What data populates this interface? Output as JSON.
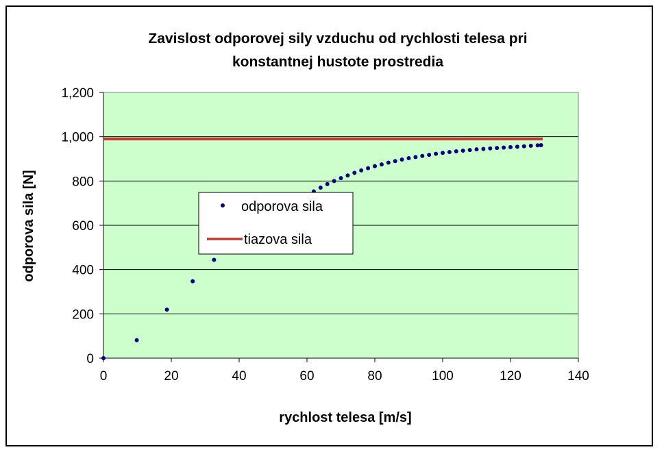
{
  "chart_data": {
    "type": "scatter",
    "title": "Zavislost odporovej sily vzduchu od rychlosti telesa pri konstantnej hustote prostredia",
    "title_lines": [
      "Zavislost odporovej sily vzduchu od rychlosti telesa pri",
      "konstantnej hustote prostredia"
    ],
    "xlabel": "rychlost telesa [m/s]",
    "ylabel": "odporova sila [N]",
    "xlim": [
      0,
      140
    ],
    "ylim": [
      0,
      1200
    ],
    "x_ticks": [
      0,
      20,
      40,
      60,
      80,
      100,
      120,
      140
    ],
    "y_ticks": [
      0,
      200,
      400,
      600,
      800,
      1000,
      1200
    ],
    "x_tick_labels": [
      "0",
      "20",
      "40",
      "60",
      "80",
      "100",
      "120",
      "140"
    ],
    "y_tick_labels": [
      "0",
      "200",
      "400",
      "600",
      "800",
      "1,000",
      "1,200"
    ],
    "grid": "horizontal",
    "plot_background": "#ccffcc",
    "legend_position": "center-left",
    "series": [
      {
        "name": "odporova sila",
        "type": "scatter",
        "color": "#000080",
        "x": [
          0,
          9.8,
          18.7,
          26.3,
          32.6,
          62.0,
          64.0,
          66.0,
          68.0,
          70.0,
          72.0,
          74.0,
          76.0,
          78.0,
          80.0,
          82.0,
          84.0,
          86.0,
          88.0,
          90.0,
          92.0,
          94.0,
          96.0,
          98.0,
          100.0,
          102.0,
          104.0,
          106.0,
          108.0,
          110.0,
          112.0,
          114.0,
          116.0,
          118.0,
          120.0,
          122.0,
          124.0,
          126.0,
          128.0,
          129.0
        ],
        "y": [
          0,
          81,
          219,
          347,
          444,
          753,
          770,
          786,
          800,
          813,
          825,
          837,
          848,
          858,
          867,
          875,
          883,
          890,
          897,
          903,
          908,
          913,
          918,
          923,
          927,
          931,
          934,
          937,
          940,
          943,
          945,
          947,
          949,
          951,
          953,
          955,
          957,
          959,
          961,
          962
        ]
      },
      {
        "name": "tiazova sila",
        "type": "line",
        "color": "#c0392b",
        "x": [
          0,
          129.5
        ],
        "y": [
          990,
          990
        ]
      }
    ]
  }
}
